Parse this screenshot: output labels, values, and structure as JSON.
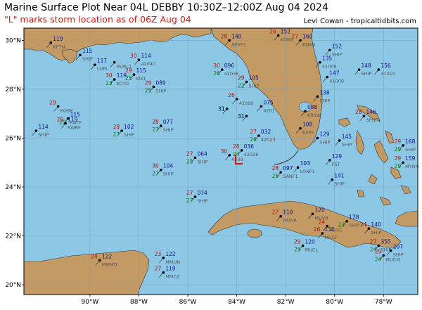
{
  "title": "Marine Surface Plot Near 04L DEBBY 10:30Z–12:00Z Aug 04 2024",
  "subtitle": "\"L\" marks storm location as of 06Z Aug 04",
  "credit": "Levi Cowan - tropicaltidbits.com",
  "storm_marker": "L",
  "colors": {
    "ocean": "#8cc8e6",
    "land": "#c49a64",
    "storm": "#e8140c",
    "temp": "#b01010",
    "dew": "#107a10",
    "pressure": "#10108a"
  },
  "lon_ticks": [
    "90°W",
    "88°W",
    "86°W",
    "84°W",
    "82°W",
    "80°W",
    "78°W"
  ],
  "lat_ticks": [
    "30°N",
    "28°N",
    "26°N",
    "24°N",
    "22°N",
    "20°N"
  ],
  "stations": [
    {
      "lon": -91.6,
      "lat": 29.9,
      "t": "",
      "d": "",
      "p": "119",
      "id": "KPTN"
    },
    {
      "lon": -90.4,
      "lat": 29.4,
      "t": "",
      "d": "",
      "p": "115",
      "id": "SHIP"
    },
    {
      "lon": -89.8,
      "lat": 29.0,
      "t": "",
      "d": "",
      "p": "117",
      "id": "LOPL"
    },
    {
      "lon": -89.0,
      "lat": 29.1,
      "t": "",
      "d": "",
      "p": "",
      "id": "BURL1"
    },
    {
      "lon": -88.0,
      "lat": 29.2,
      "t": "30",
      "d": "",
      "p": "114",
      "id": "42040"
    },
    {
      "lon": -89.0,
      "lat": 28.4,
      "t": "30",
      "d": "23",
      "p": "119",
      "id": "KCYD"
    },
    {
      "lon": -88.2,
      "lat": 28.6,
      "t": "29",
      "d": "25",
      "p": "115",
      "id": "KIKT"
    },
    {
      "lon": -87.4,
      "lat": 28.1,
      "t": "29",
      "d": "25",
      "p": "089",
      "id": "SHIP"
    },
    {
      "lon": -91.3,
      "lat": 27.3,
      "t": "29",
      "d": "",
      "p": "",
      "id": "KGBK"
    },
    {
      "lon": -90.9,
      "lat": 26.8,
      "t": "",
      "d": "29",
      "p": "115",
      "id": "KATP"
    },
    {
      "lon": -91.0,
      "lat": 26.6,
      "t": "29",
      "d": "",
      "p": "119",
      "id": "KWBF"
    },
    {
      "lon": -92.2,
      "lat": 26.3,
      "t": "",
      "d": "",
      "p": "114",
      "id": "SHIP"
    },
    {
      "lon": -88.7,
      "lat": 26.3,
      "t": "28",
      "d": "27",
      "p": "102",
      "id": "SHIP"
    },
    {
      "lon": -87.1,
      "lat": 26.5,
      "t": "28",
      "d": "27",
      "p": "077",
      "id": "SHIP"
    },
    {
      "lon": -87.1,
      "lat": 24.7,
      "t": "30",
      "d": "27",
      "p": "104",
      "id": "SHIP"
    },
    {
      "lon": -85.7,
      "lat": 25.2,
      "t": "27",
      "d": "25",
      "p": "064",
      "id": "SHIP"
    },
    {
      "lon": -85.7,
      "lat": 23.6,
      "t": "27",
      "d": "27",
      "p": "074",
      "id": "SHIP"
    },
    {
      "lon": -84.3,
      "lat": 30.0,
      "t": "28",
      "d": "",
      "p": "140",
      "id": "APXF1"
    },
    {
      "lon": -84.6,
      "lat": 28.8,
      "t": "30",
      "d": "26",
      "p": "096",
      "id": "42036"
    },
    {
      "lon": -84.0,
      "lat": 27.6,
      "t": "26",
      "d": "",
      "p": "",
      "id": "42099"
    },
    {
      "lon": -84.4,
      "lat": 27.2,
      "t": "",
      "d": "",
      "p": "",
      "id": "",
      "b": "31"
    },
    {
      "lon": -83.6,
      "lat": 26.9,
      "t": "",
      "d": "",
      "p": "",
      "id": "",
      "b": "31"
    },
    {
      "lon": -83.6,
      "lat": 28.3,
      "t": "29",
      "d": "22",
      "p": "105",
      "id": "SHIP"
    },
    {
      "lon": -83.0,
      "lat": 27.3,
      "t": "",
      "d": "",
      "p": "075",
      "id": "4201"
    },
    {
      "lon": -83.1,
      "lat": 26.1,
      "t": "27",
      "d": "26",
      "p": "032",
      "id": "42023"
    },
    {
      "lon": -83.8,
      "lat": 25.5,
      "t": "28",
      "d": "24",
      "p": "036",
      "id": "42026"
    },
    {
      "lon": -84.3,
      "lat": 25.3,
      "t": "30",
      "d": "",
      "p": "",
      "id": "4209"
    },
    {
      "lon": -82.2,
      "lat": 24.6,
      "t": "28",
      "d": "25",
      "p": "097",
      "id": "SANF1"
    },
    {
      "lon": -81.5,
      "lat": 24.8,
      "t": "",
      "d": "",
      "p": "103",
      "id": "LONF1"
    },
    {
      "lon": -80.1,
      "lat": 24.3,
      "t": "",
      "d": "",
      "p": "141",
      "id": "SHIP"
    },
    {
      "lon": -82.3,
      "lat": 30.2,
      "t": "26",
      "d": "",
      "p": "152",
      "id": "KGNV"
    },
    {
      "lon": -81.4,
      "lat": 30.0,
      "t": "27",
      "d": "",
      "p": "160",
      "id": "KDAB"
    },
    {
      "lon": -80.2,
      "lat": 29.6,
      "t": "",
      "d": "",
      "p": "152",
      "id": "SHIP"
    },
    {
      "lon": -80.6,
      "lat": 29.1,
      "t": "",
      "d": "",
      "p": "135",
      "id": "41009"
    },
    {
      "lon": -79.0,
      "lat": 28.8,
      "t": "",
      "d": "",
      "p": "148",
      "id": "SHIP"
    },
    {
      "lon": -78.2,
      "lat": 28.8,
      "t": "",
      "d": "",
      "p": "156",
      "id": "41010"
    },
    {
      "lon": -80.3,
      "lat": 28.5,
      "t": "",
      "d": "",
      "p": "147",
      "id": "41009"
    },
    {
      "lon": -80.7,
      "lat": 27.7,
      "t": "",
      "d": "",
      "p": "138",
      "id": "SHIP"
    },
    {
      "lon": -81.2,
      "lat": 27.1,
      "t": "",
      "d": "",
      "p": "088",
      "id": "KRSW"
    },
    {
      "lon": -81.4,
      "lat": 26.4,
      "t": "",
      "d": "",
      "p": "108",
      "id": "KAPF"
    },
    {
      "lon": -80.7,
      "lat": 26.0,
      "t": "",
      "d": "",
      "p": "129",
      "id": "SHIP"
    },
    {
      "lon": -79.8,
      "lat": 25.9,
      "t": "",
      "d": "",
      "p": "145",
      "id": "SHIP"
    },
    {
      "lon": -80.2,
      "lat": 25.1,
      "t": "",
      "d": "",
      "p": "129",
      "id": "FST"
    },
    {
      "lon": -78.8,
      "lat": 26.9,
      "t": "28",
      "d": "",
      "p": "146",
      "id": "SPGF1"
    },
    {
      "lon": -77.2,
      "lat": 25.7,
      "t": "29",
      "d": "29",
      "p": "168",
      "id": "SHIP"
    },
    {
      "lon": -77.2,
      "lat": 25.0,
      "t": "29",
      "d": "29",
      "p": "159",
      "id": "MYNN"
    },
    {
      "lon": -82.2,
      "lat": 22.8,
      "t": "27",
      "d": "",
      "p": "110",
      "id": "MUHA"
    },
    {
      "lon": -80.9,
      "lat": 22.9,
      "t": "",
      "d": "",
      "p": "120",
      "id": "MUVR"
    },
    {
      "lon": -79.5,
      "lat": 22.6,
      "t": "",
      "d": "23",
      "p": "178",
      "id": "SHIP"
    },
    {
      "lon": -80.5,
      "lat": 22.1,
      "t": "26",
      "d": "",
      "p": "130",
      "id": "MUCF"
    },
    {
      "lon": -80.3,
      "lat": 22.4,
      "t": "24",
      "d": "",
      "p": "",
      "id": "MUSC"
    },
    {
      "lon": -78.6,
      "lat": 22.3,
      "t": "24",
      "d": "",
      "p": "140",
      "id": "SHIP"
    },
    {
      "lon": -78.2,
      "lat": 21.6,
      "t": "27",
      "d": "24",
      "p": "355",
      "id": "SHIP"
    },
    {
      "lon": -77.7,
      "lat": 21.4,
      "t": "",
      "d": "",
      "p": "207",
      "id": "SHIP"
    },
    {
      "lon": -78.0,
      "lat": 21.2,
      "t": "29",
      "d": "24",
      "p": "",
      "id": "MUCM"
    },
    {
      "lon": -81.3,
      "lat": 21.6,
      "t": "29",
      "d": "25",
      "p": "120",
      "id": "MUCL"
    },
    {
      "lon": -89.6,
      "lat": 21.0,
      "t": "24",
      "d": "",
      "p": "122",
      "id": "MMMD"
    },
    {
      "lon": -87.0,
      "lat": 21.1,
      "t": "23",
      "d": "",
      "p": "122",
      "id": "MMUN"
    },
    {
      "lon": -87.0,
      "lat": 20.5,
      "t": "27",
      "d": "",
      "p": "119",
      "id": "MMCZ"
    }
  ]
}
